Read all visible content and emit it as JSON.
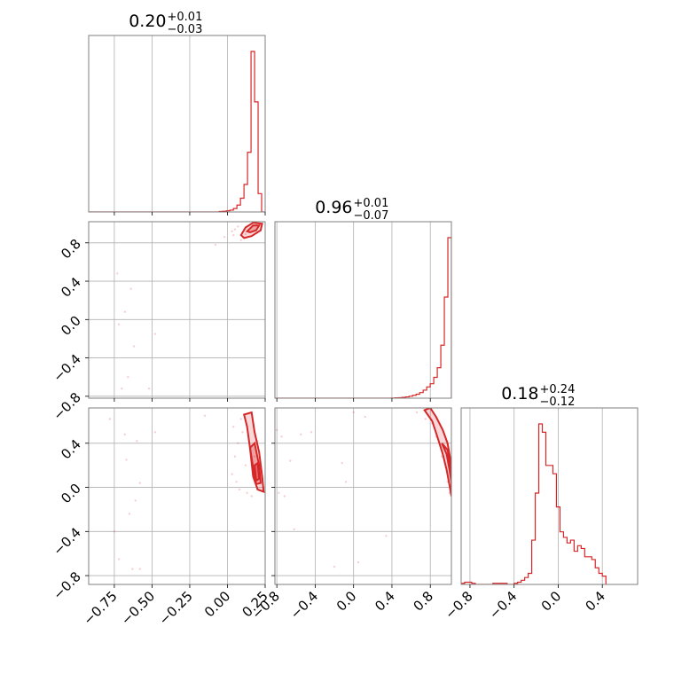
{
  "chart_data": {
    "type": "corner",
    "color": "#d62728",
    "grid": true,
    "parameters": [
      {
        "range": [
          -0.92,
          0.25
        ],
        "title": {
          "value": "0.20",
          "plus": "+0.01",
          "minus": "−0.03"
        },
        "ticks": [
          -0.75,
          -0.5,
          -0.25,
          0.0,
          0.25
        ],
        "tick_labels": [
          "−0.75",
          "−0.50",
          "−0.25",
          "0.00",
          "0.25"
        ]
      },
      {
        "range": [
          -0.82,
          1.02
        ],
        "title": {
          "value": "0.96",
          "plus": "+0.01",
          "minus": "−0.07"
        },
        "ticks": [
          -0.8,
          -0.4,
          0.0,
          0.4,
          0.8
        ],
        "tick_labels": [
          "−0.8",
          "−0.4",
          "0.0",
          "0.4",
          "0.8"
        ]
      },
      {
        "range": [
          -0.88,
          0.72
        ],
        "title": {
          "value": "0.18",
          "plus": "+0.24",
          "minus": "−0.12"
        },
        "ticks": [
          -0.8,
          -0.4,
          0.0,
          0.4
        ],
        "tick_labels": [
          "−0.8",
          "−0.4",
          "0.0",
          "0.4"
        ]
      }
    ],
    "histograms": [
      {
        "param": 0,
        "edges_start": -0.92,
        "bin_width": 0.0234,
        "counts": [
          0,
          0,
          0,
          0,
          0,
          0,
          0,
          0,
          0,
          0,
          0,
          0,
          0,
          0,
          0,
          0,
          0,
          0,
          0,
          0,
          0,
          0,
          0,
          0,
          0,
          0,
          0,
          0,
          0,
          0,
          0,
          0,
          0,
          0,
          0,
          0,
          0,
          0.2,
          0.3,
          0.5,
          0.8,
          1.5,
          3,
          6,
          12,
          26,
          70,
          48,
          8,
          0
        ]
      },
      {
        "param": 1,
        "edges_start": -0.82,
        "bin_width": 0.0368,
        "counts": [
          0,
          0,
          0,
          0,
          0,
          0,
          0,
          0,
          0,
          0,
          0,
          0,
          0,
          0,
          0,
          0,
          0,
          0,
          0,
          0,
          0,
          0,
          0,
          0,
          0,
          0,
          0,
          0,
          0,
          0,
          0,
          0,
          0,
          0.1,
          0.2,
          0.3,
          0.5,
          0.8,
          1.2,
          1.8,
          2.5,
          3.5,
          5,
          7,
          9,
          13,
          19,
          33,
          63,
          100
        ]
      },
      {
        "param": 2,
        "edges_start": -0.88,
        "bin_width": 0.032,
        "counts": [
          0.4,
          0.8,
          0.8,
          0.4,
          0,
          0,
          0,
          0,
          0,
          0.4,
          0.4,
          0.4,
          0.4,
          0,
          0,
          0.4,
          0.8,
          1.5,
          2.5,
          4,
          16,
          33,
          58,
          55,
          43,
          43,
          40,
          28,
          19,
          17,
          15,
          16,
          12,
          14,
          13,
          10,
          10,
          9,
          6,
          4,
          3
        ]
      }
    ],
    "scatter_samples": [
      {
        "x_param": 0,
        "y_param": 1,
        "points": [
          [
            -0.73,
            0.48
          ],
          [
            -0.64,
            0.32
          ],
          [
            -0.68,
            0.08
          ],
          [
            -0.72,
            -0.05
          ],
          [
            -0.62,
            -0.28
          ],
          [
            -0.48,
            -0.15
          ],
          [
            -0.66,
            -0.6
          ],
          [
            -0.7,
            -0.72
          ],
          [
            -0.52,
            -0.72
          ],
          [
            -0.08,
            0.78
          ],
          [
            -0.02,
            0.86
          ],
          [
            0.03,
            0.92
          ],
          [
            0.05,
            0.94
          ],
          [
            0.07,
            0.97
          ],
          [
            0.12,
            0.89
          ],
          [
            0.09,
            0.83
          ],
          [
            0.04,
            0.88
          ]
        ]
      },
      {
        "x_param": 0,
        "y_param": 2,
        "points": [
          [
            -0.78,
            0.62
          ],
          [
            -0.68,
            0.48
          ],
          [
            -0.6,
            0.42
          ],
          [
            -0.67,
            0.25
          ],
          [
            -0.58,
            0.04
          ],
          [
            -0.61,
            -0.12
          ],
          [
            -0.65,
            -0.24
          ],
          [
            -0.75,
            -0.4
          ],
          [
            -0.72,
            -0.65
          ],
          [
            -0.63,
            -0.74
          ],
          [
            -0.58,
            -0.74
          ],
          [
            -0.48,
            0.5
          ],
          [
            -0.15,
            0.65
          ],
          [
            0.04,
            0.55
          ],
          [
            0.05,
            0.28
          ],
          [
            0.06,
            0.05
          ],
          [
            0.07,
            0.4
          ],
          [
            0.03,
            0.12
          ],
          [
            0.09,
            0.62
          ],
          [
            0.1,
            0.5
          ],
          [
            0.12,
            0.2
          ],
          [
            0.13,
            -0.05
          ],
          [
            0.16,
            -0.08
          ],
          [
            0.18,
            0.28
          ],
          [
            0.2,
            0.42
          ],
          [
            0.08,
            -0.02
          ]
        ]
      },
      {
        "x_param": 1,
        "y_param": 2,
        "points": [
          [
            -0.8,
            0.52
          ],
          [
            -0.75,
            0.46
          ],
          [
            -0.66,
            0.24
          ],
          [
            -0.78,
            -0.05
          ],
          [
            -0.72,
            -0.08
          ],
          [
            -0.62,
            -0.38
          ],
          [
            -0.55,
            0.48
          ],
          [
            -0.44,
            0.5
          ],
          [
            -0.12,
            0.22
          ],
          [
            -0.08,
            0.05
          ],
          [
            0.0,
            0.68
          ],
          [
            0.12,
            0.64
          ],
          [
            -0.2,
            -0.72
          ],
          [
            0.05,
            -0.68
          ],
          [
            0.34,
            -0.44
          ],
          [
            0.66,
            0.68
          ],
          [
            0.75,
            0.62
          ],
          [
            0.82,
            0.58
          ],
          [
            0.86,
            0.46
          ],
          [
            0.92,
            0.28
          ],
          [
            0.96,
            0.18
          ],
          [
            0.98,
            0.05
          ],
          [
            1.0,
            -0.05
          ]
        ]
      }
    ],
    "contours": [
      {
        "x_param": 0,
        "y_param": 1,
        "levels": [
          [
            [
              0.09,
              0.88
            ],
            [
              0.12,
              0.96
            ],
            [
              0.17,
              1.01
            ],
            [
              0.23,
              1.0
            ],
            [
              0.22,
              0.93
            ],
            [
              0.16,
              0.87
            ],
            [
              0.11,
              0.85
            ],
            [
              0.09,
              0.88
            ]
          ],
          [
            [
              0.13,
              0.92
            ],
            [
              0.17,
              0.98
            ],
            [
              0.21,
              0.98
            ],
            [
              0.19,
              0.93
            ],
            [
              0.15,
              0.91
            ],
            [
              0.13,
              0.92
            ]
          ]
        ]
      },
      {
        "x_param": 0,
        "y_param": 2,
        "levels": [
          [
            [
              0.11,
              0.66
            ],
            [
              0.16,
              0.68
            ],
            [
              0.18,
              0.5
            ],
            [
              0.21,
              0.32
            ],
            [
              0.23,
              0.1
            ],
            [
              0.24,
              -0.04
            ],
            [
              0.2,
              -0.02
            ],
            [
              0.17,
              0.1
            ],
            [
              0.15,
              0.35
            ],
            [
              0.13,
              0.55
            ],
            [
              0.11,
              0.66
            ]
          ],
          [
            [
              0.15,
              0.36
            ],
            [
              0.18,
              0.4
            ],
            [
              0.21,
              0.2
            ],
            [
              0.22,
              0.04
            ],
            [
              0.19,
              0.03
            ],
            [
              0.17,
              0.18
            ],
            [
              0.15,
              0.36
            ]
          ],
          [
            [
              0.18,
              0.2
            ],
            [
              0.2,
              0.22
            ],
            [
              0.21,
              0.08
            ],
            [
              0.19,
              0.06
            ],
            [
              0.18,
              0.2
            ]
          ]
        ]
      },
      {
        "x_param": 1,
        "y_param": 2,
        "levels": [
          [
            [
              0.74,
              0.7
            ],
            [
              0.82,
              0.6
            ],
            [
              0.88,
              0.44
            ],
            [
              0.93,
              0.3
            ],
            [
              0.97,
              0.16
            ],
            [
              1.0,
              0.02
            ],
            [
              1.02,
              -0.08
            ],
            [
              1.02,
              0.1
            ],
            [
              1.01,
              0.25
            ],
            [
              0.98,
              0.4
            ],
            [
              0.93,
              0.52
            ],
            [
              0.86,
              0.64
            ],
            [
              0.8,
              0.72
            ],
            [
              0.74,
              0.7
            ]
          ],
          [
            [
              0.92,
              0.4
            ],
            [
              0.97,
              0.3
            ],
            [
              1.0,
              0.16
            ],
            [
              1.02,
              0.05
            ],
            [
              1.01,
              0.2
            ],
            [
              0.98,
              0.34
            ],
            [
              0.92,
              0.4
            ]
          ]
        ]
      }
    ]
  }
}
